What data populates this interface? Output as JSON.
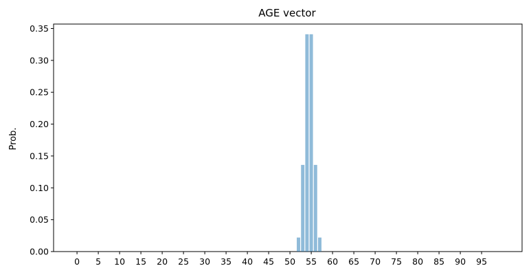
{
  "chart_data": {
    "type": "bar",
    "title": "AGE vector",
    "xlabel": "",
    "ylabel": "Prob.",
    "x_range": [
      0,
      100
    ],
    "xlim": [
      -5.5,
      104.5
    ],
    "ylim": [
      0,
      0.357
    ],
    "x_tick_values": [
      0,
      5,
      10,
      15,
      20,
      25,
      30,
      35,
      40,
      45,
      50,
      55,
      60,
      65,
      70,
      75,
      80,
      85,
      90,
      95
    ],
    "x_tick_labels": [
      "0",
      "5",
      "10",
      "15",
      "20",
      "25",
      "30",
      "35",
      "40",
      "45",
      "50",
      "55",
      "60",
      "65",
      "70",
      "75",
      "80",
      "85",
      "90",
      "95"
    ],
    "y_tick_values": [
      0.0,
      0.05,
      0.1,
      0.15,
      0.2,
      0.25,
      0.3,
      0.35
    ],
    "y_tick_labels": [
      "0.00",
      "0.05",
      "0.10",
      "0.15",
      "0.20",
      "0.25",
      "0.30",
      "0.35"
    ],
    "bars": [
      {
        "x": 52,
        "value": 0.022
      },
      {
        "x": 53,
        "value": 0.136
      },
      {
        "x": 54,
        "value": 0.341
      },
      {
        "x": 55,
        "value": 0.341
      },
      {
        "x": 56,
        "value": 0.136
      },
      {
        "x": 57,
        "value": 0.022
      }
    ],
    "bar_color": "#1f77b4",
    "bar_opacity": 0.5,
    "grid": false,
    "legend": "none"
  }
}
